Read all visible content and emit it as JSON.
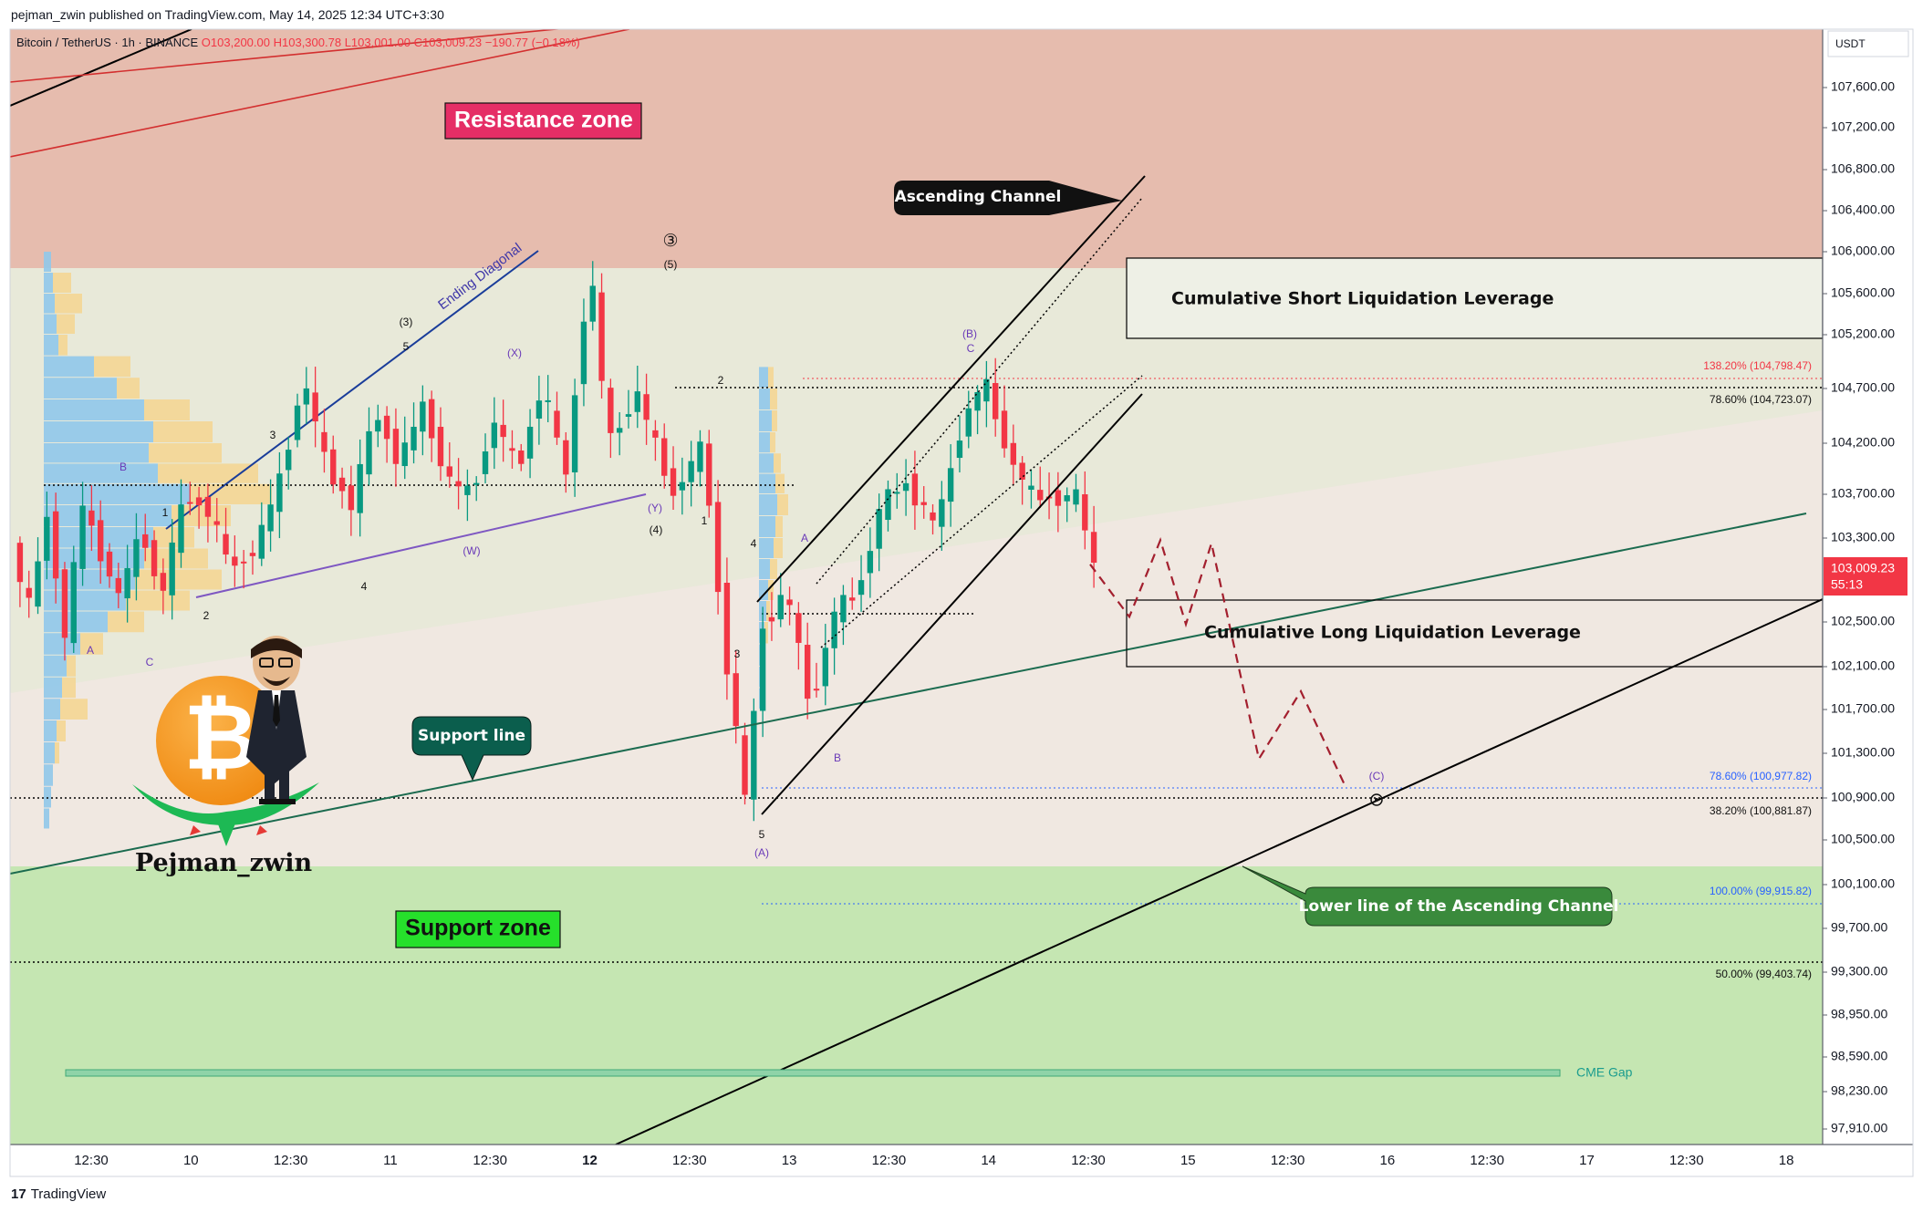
{
  "header": {
    "published": "pejman_zwin published on TradingView.com, May 14, 2025 12:34 UTC+3:30"
  },
  "symbol_bar": {
    "name": "Bitcoin / TetherUS · 1h · BINANCE",
    "open": "O103,200.00",
    "high": "H103,300.78",
    "low": "L103,001.00",
    "close": "C103,009.23",
    "change": "−190.77 (−0.18%)"
  },
  "currency": "USDT",
  "last_price": {
    "value": "103,009.23",
    "countdown": "55:13"
  },
  "footer": {
    "logo": "17",
    "brand": "TradingView"
  },
  "colors": {
    "up": "#089981",
    "down": "#f23645",
    "resistance_zone": "#e6bcae",
    "support_zone": "#c5e6b2",
    "middle": "#f0e8e1",
    "volume_profile_blue": "#90c8ea",
    "volume_profile_yellow": "#f4d693"
  },
  "chart_data": {
    "type": "candlestick",
    "symbol": "Bitcoin / TetherUS",
    "interval": "1h",
    "exchange": "BINANCE",
    "x_axis_ticks": [
      "12:30",
      "10",
      "12:30",
      "11",
      "12:30",
      "12",
      "12:30",
      "13",
      "12:30",
      "14",
      "12:30",
      "15",
      "12:30",
      "16",
      "12:30",
      "17",
      "12:30",
      "18"
    ],
    "y_axis_ticks": [
      "107,600.00",
      "107,200.00",
      "106,800.00",
      "106,400.00",
      "106,000.00",
      "105,600.00",
      "105,200.00",
      "104,700.00",
      "104,200.00",
      "103,700.00",
      "103,300.00",
      "102,500.00",
      "102,100.00",
      "101,700.00",
      "101,300.00",
      "100,900.00",
      "100,500.00",
      "100,100.00",
      "99,700.00",
      "99,300.00",
      "98,950.00",
      "98,590.00",
      "98,230.00",
      "97,910.00"
    ],
    "y_tick_values": [
      107600,
      107200,
      106800,
      106400,
      106000,
      105600,
      105200,
      104700,
      104200,
      103700,
      103300,
      102500,
      102100,
      101700,
      101300,
      100900,
      100500,
      100100,
      99700,
      99300,
      98950,
      98590,
      98230,
      97910
    ],
    "fib_levels": [
      {
        "label": "138.20% (104,798.47)",
        "value": 104798.47
      },
      {
        "label": "78.60% (104,723.07)",
        "value": 104723.07
      },
      {
        "label": "78.60% (100,977.82)",
        "value": 100977.82
      },
      {
        "label": "38.20% (100,881.87)",
        "value": 100881.87
      },
      {
        "label": "100.00% (99,915.82)",
        "value": 99915.82
      },
      {
        "label": "50.00% (99,403.74)",
        "value": 99403.74
      }
    ],
    "zones": [
      {
        "label": "Resistance zone",
        "from": 105850,
        "to": 108000
      },
      {
        "label": "Support zone",
        "from": 97650,
        "to": 100250
      }
    ],
    "liquidation_boxes": [
      {
        "label": "Cumulative Short Liquidation Leverage",
        "from": 105200,
        "to": 105950
      },
      {
        "label": "Cumulative Long Liquidation Leverage",
        "from": 102150,
        "to": 102800
      }
    ],
    "callouts": [
      "Ascending Channel",
      "Support line",
      "Lower line of the Ascending Channel"
    ],
    "annotations": [
      "Ending Diagonal",
      "CME Gap",
      "Pejman_zwin"
    ],
    "wave_labels": [
      "1",
      "2",
      "3",
      "4",
      "5",
      "A",
      "B",
      "C",
      "(3)",
      "(4)",
      "(5)",
      "(W)",
      "(X)",
      "(Y)",
      "(A)",
      "(B)",
      "(C)",
      "③",
      "1",
      "2",
      "3",
      "4",
      "5",
      "A",
      "B",
      "C"
    ],
    "projected_path": [
      103050,
      102550,
      103280,
      102480,
      103250,
      101250,
      101870,
      101000
    ]
  }
}
